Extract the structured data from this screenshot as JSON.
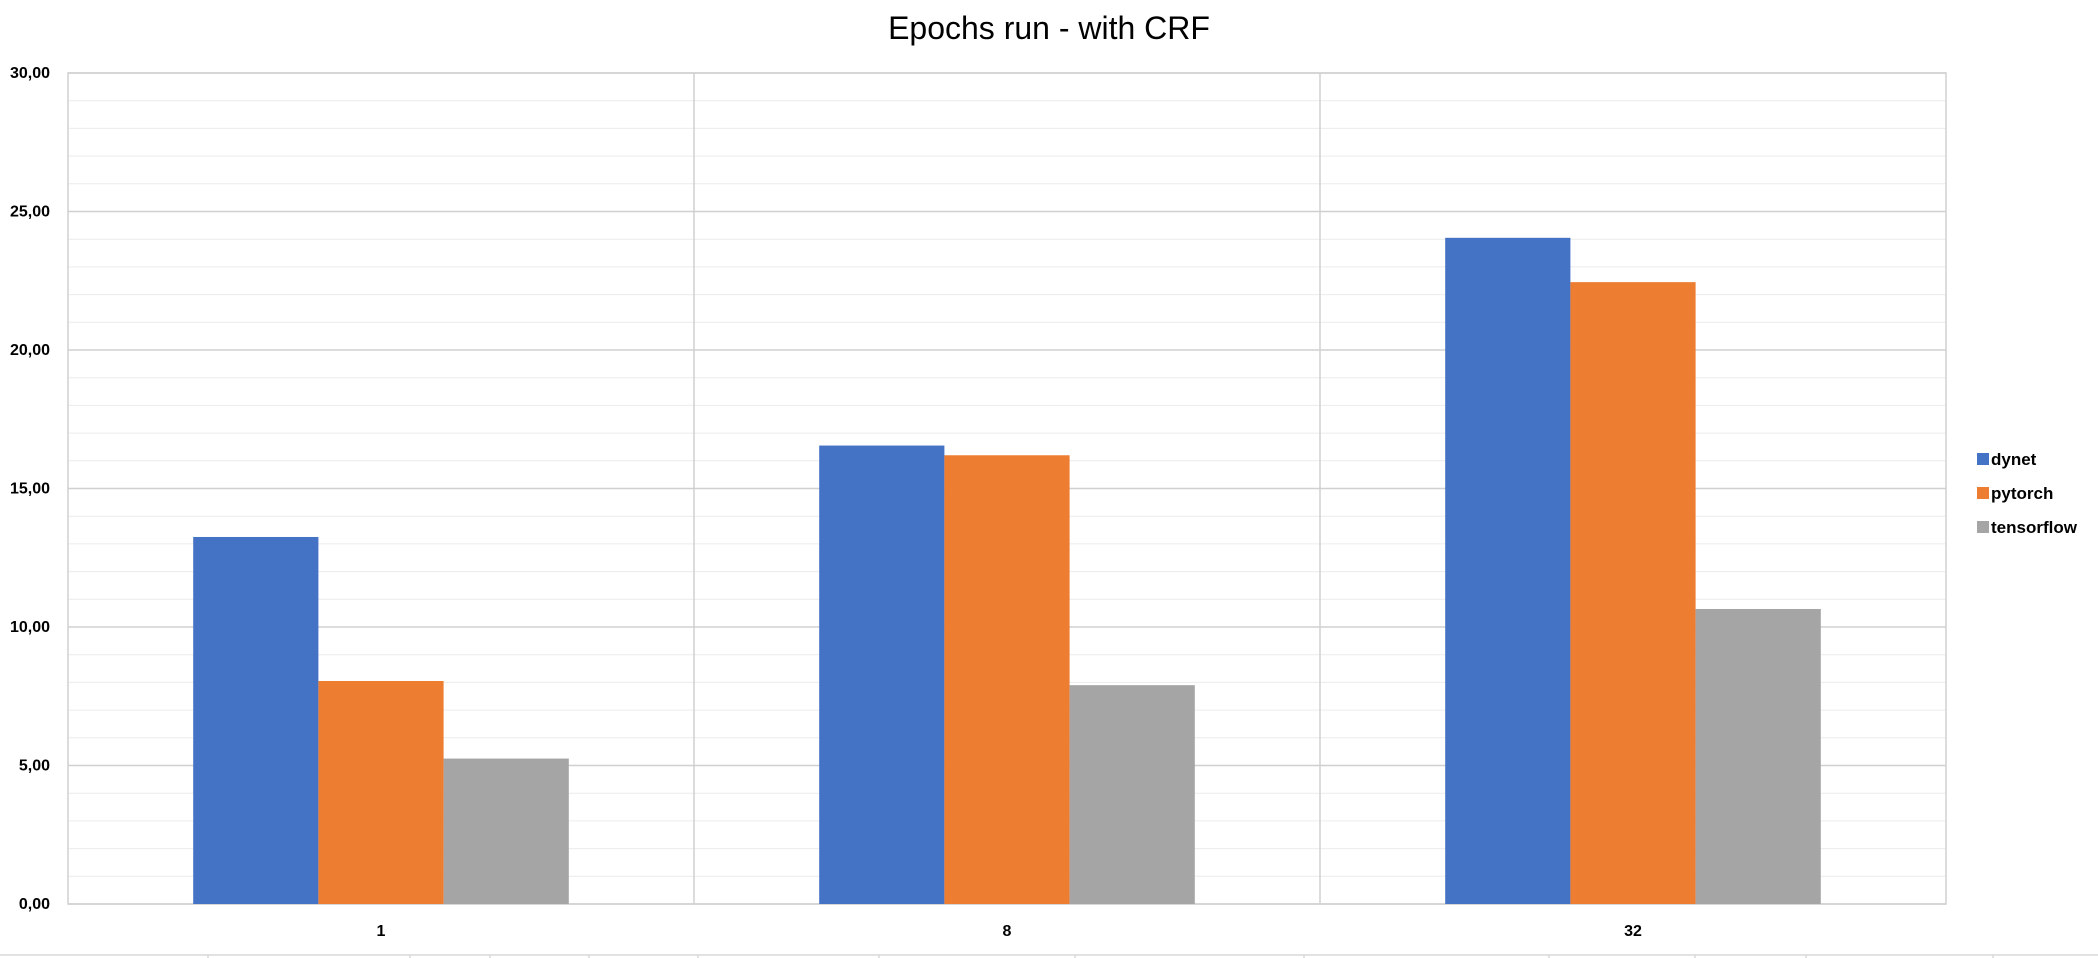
{
  "chart_data": {
    "type": "bar",
    "title": "Epochs run - with CRF",
    "categories": [
      "1",
      "8",
      "32"
    ],
    "series": [
      {
        "name": "dynet",
        "color": "#4472C4",
        "values": [
          13.25,
          16.55,
          24.05
        ]
      },
      {
        "name": "pytorch",
        "color": "#ED7D31",
        "values": [
          8.05,
          16.2,
          22.45
        ]
      },
      {
        "name": "tensorflow",
        "color": "#A5A5A5",
        "values": [
          5.25,
          7.9,
          10.65
        ]
      }
    ],
    "ylim": [
      0,
      30
    ],
    "y_ticks": [
      "0,00",
      "5,00",
      "10,00",
      "15,00",
      "20,00",
      "25,00",
      "30,00"
    ],
    "grid": true,
    "legend_position": "right"
  }
}
